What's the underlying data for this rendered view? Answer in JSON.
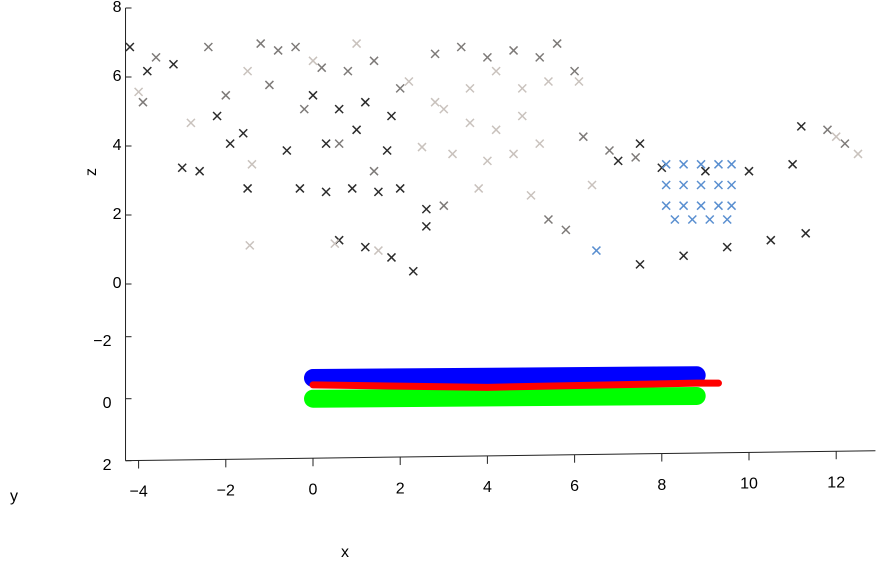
{
  "chart_data": {
    "type": "scatter3d",
    "xlabel": "x",
    "ylabel": "y",
    "zlabel": "z",
    "xlim": [
      -4.3,
      12.9
    ],
    "ylim": [
      -3.7,
      2
    ],
    "zlim": [
      0,
      8
    ],
    "xticks": [
      {
        "value": -4,
        "label": "−4"
      },
      {
        "value": -2,
        "label": "−2"
      },
      0,
      2,
      4,
      6,
      8,
      10,
      12
    ],
    "yticks": [
      {
        "value": -2,
        "label": "−2"
      },
      0,
      2
    ],
    "zticks": [
      0,
      2,
      4,
      6,
      8
    ],
    "series": [
      {
        "style": "x",
        "color": "#2b2b2b",
        "x": [
          -4.2,
          -3.8,
          -3.2,
          -3.0,
          -2.6,
          -2.2,
          -1.9,
          -1.5,
          -1.6,
          -0.6,
          -0.3,
          0.3,
          0.9,
          1.5,
          2.0,
          0.0,
          0.6,
          1.2,
          1.8,
          0.3,
          1.0,
          1.7,
          0.6,
          1.2,
          1.8,
          2.3,
          7.0,
          7.5,
          8.0,
          9.0,
          10.0,
          11.0,
          11.2,
          7.5,
          8.5,
          9.5,
          10.5,
          11.3,
          2.6,
          2.6
        ],
        "y": [
          -4,
          -4,
          -4,
          -4,
          -4,
          -4,
          -4,
          -4,
          -4,
          -4,
          -4,
          -4,
          -4,
          -4,
          -4,
          -4,
          -4,
          -4,
          -4,
          -4,
          -4,
          -4,
          -4,
          -4,
          -4,
          -4,
          -4,
          -4,
          -4,
          -4,
          -4,
          -4,
          -4,
          -4,
          -4,
          -4,
          -4,
          -4,
          -4,
          -4
        ],
        "z": [
          6.6,
          5.9,
          6.1,
          3.1,
          3.0,
          4.6,
          3.8,
          2.5,
          4.1,
          3.6,
          2.5,
          2.4,
          2.5,
          2.4,
          2.5,
          5.2,
          4.8,
          5.0,
          4.6,
          3.8,
          4.2,
          3.6,
          1.0,
          0.8,
          0.5,
          0.1,
          3.3,
          3.8,
          3.1,
          3.0,
          3.0,
          3.2,
          4.3,
          0.3,
          0.55,
          0.8,
          1.0,
          1.2,
          1.9,
          1.4
        ]
      },
      {
        "style": "x",
        "color": "#7d7a78",
        "x": [
          -3.6,
          -2.4,
          -1.2,
          -0.8,
          -0.4,
          0.2,
          0.8,
          1.4,
          2.0,
          2.8,
          3.4,
          4.0,
          4.6,
          5.2,
          5.6,
          6.0,
          -1.0,
          -0.2,
          0.6,
          1.4,
          6.2,
          6.8,
          7.4,
          5.4,
          5.8,
          3.0,
          -3.9,
          -2.0,
          11.8,
          12.2
        ],
        "y": [
          -4,
          -4,
          -4,
          -4,
          -4,
          -4,
          -4,
          -4,
          -4,
          -4,
          -4,
          -4,
          -4,
          -4,
          -4,
          -4,
          -4,
          -4,
          -4,
          -4,
          -4,
          -4,
          -4,
          -4,
          -4,
          -4,
          -4,
          -4,
          -4,
          -4
        ],
        "z": [
          6.3,
          6.6,
          6.7,
          6.5,
          6.6,
          6.0,
          5.9,
          6.2,
          5.4,
          6.4,
          6.6,
          6.3,
          6.5,
          6.3,
          6.7,
          5.9,
          5.5,
          4.8,
          3.8,
          3.0,
          4.0,
          3.6,
          3.4,
          1.6,
          1.3,
          2.0,
          5.0,
          5.2,
          4.2,
          3.8
        ]
      },
      {
        "style": "x",
        "color": "#c9c2bd",
        "x": [
          -1.45,
          1.0,
          2.2,
          2.8,
          3.6,
          4.2,
          4.8,
          5.4,
          3.0,
          3.6,
          4.2,
          4.8,
          2.5,
          3.2,
          4.0,
          4.6,
          5.2,
          -4.0,
          -2.8,
          -1.5,
          0.0,
          12.0,
          12.5,
          6.1,
          6.4,
          0.5,
          1.5,
          5.0,
          3.8,
          -1.4
        ],
        "y": [
          -4,
          -4,
          -4,
          -4,
          -4,
          -4,
          -4,
          -4,
          -4,
          -4,
          -4,
          -4,
          -4,
          -4,
          -4,
          -4,
          -4,
          -4,
          -4,
          -4,
          -4,
          -4,
          -4,
          -4,
          -4,
          -4,
          -4,
          -4,
          -4,
          -4
        ],
        "z": [
          0.85,
          6.7,
          5.6,
          5.0,
          5.4,
          5.9,
          5.4,
          5.6,
          4.8,
          4.4,
          4.2,
          4.6,
          3.7,
          3.5,
          3.3,
          3.5,
          3.8,
          5.3,
          4.4,
          5.9,
          6.2,
          4.0,
          3.5,
          5.6,
          2.6,
          0.9,
          0.7,
          2.3,
          2.5,
          3.2
        ]
      },
      {
        "style": "x",
        "color": "#5a8fd0",
        "x": [
          8.1,
          8.5,
          8.9,
          9.3,
          9.6,
          8.1,
          8.5,
          8.9,
          9.3,
          9.6,
          8.1,
          8.5,
          8.9,
          9.3,
          9.6,
          8.3,
          8.7,
          9.1,
          9.5,
          6.5
        ],
        "y": [
          -4,
          -4,
          -4,
          -4,
          -4,
          -4,
          -4,
          -4,
          -4,
          -4,
          -4,
          -4,
          -4,
          -4,
          -4,
          -4,
          -4,
          -4,
          -4,
          -4
        ],
        "z": [
          3.2,
          3.2,
          3.2,
          3.2,
          3.2,
          2.6,
          2.6,
          2.6,
          2.6,
          2.6,
          2.0,
          2.0,
          2.0,
          2.0,
          2.0,
          1.6,
          1.6,
          1.6,
          1.6,
          0.7
        ]
      },
      {
        "style": "line",
        "color": "#0000ff",
        "x": [
          0,
          8.8
        ],
        "y": [
          0,
          0
        ],
        "z": [
          0.6,
          0.68
        ]
      },
      {
        "style": "line",
        "color": "#00ff00",
        "x": [
          0,
          8.8
        ],
        "y": [
          0,
          0
        ],
        "z": [
          0,
          0.08
        ]
      },
      {
        "style": "line",
        "color": "#ff0000",
        "x": [
          0,
          4,
          8.8,
          9.3
        ],
        "y": [
          0,
          0,
          0,
          0
        ],
        "z": [
          0.4,
          0.33,
          0.45,
          0.45
        ]
      }
    ]
  }
}
